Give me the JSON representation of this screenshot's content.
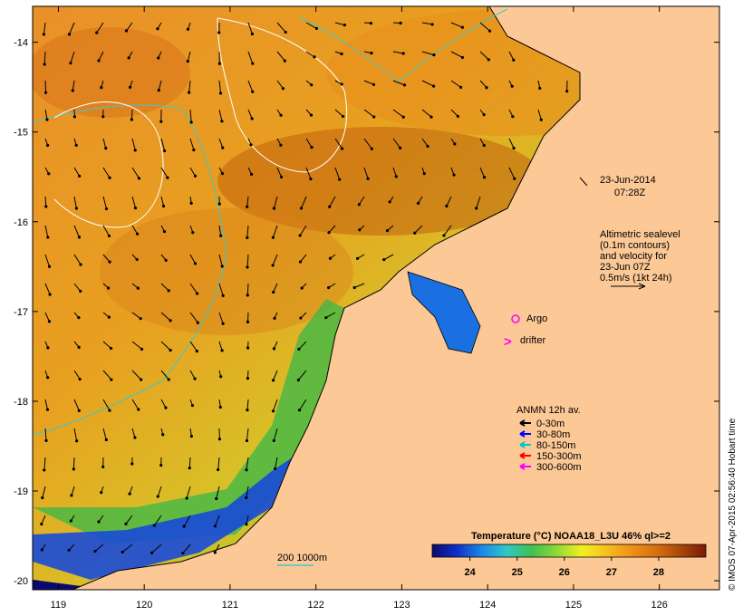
{
  "map": {
    "lon_ticks": [
      119,
      120,
      121,
      122,
      123,
      124,
      125,
      126
    ],
    "lat_ticks": [
      -14,
      -15,
      -16,
      -17,
      -18,
      -19,
      -20
    ],
    "lon_range": [
      118.7,
      126.7
    ],
    "lat_range": [
      -20.1,
      -13.6
    ]
  },
  "annotations": {
    "date": "23-Jun-2014",
    "time": "07:28Z",
    "altimetry_lines": [
      "Altimetric sealevel",
      "(0.1m contours)",
      "and velocity for",
      "23-Jun 07Z",
      "0.5m/s (1kt 24h)"
    ],
    "argo_label": "Argo",
    "drifter_label": "drifter",
    "depth_scale_label": "200  1000m",
    "credit": "© IMOS 07-Apr-2015 02:56:40 Hobart time"
  },
  "anmn_legend": {
    "title": "ANMN 12h av.",
    "items": [
      {
        "label": "0-30m",
        "color": "#000000"
      },
      {
        "label": "30-80m",
        "color": "#0000ff"
      },
      {
        "label": "80-150m",
        "color": "#00c8c8"
      },
      {
        "label": "150-300m",
        "color": "#ff0000"
      },
      {
        "label": "300-600m",
        "color": "#ff00ff"
      }
    ]
  },
  "colorbar": {
    "title": "Temperature (°C) NOAA18_L3U 46% ql>=2",
    "ticks": [
      24,
      25,
      26,
      27,
      28
    ],
    "range": [
      23.2,
      29.0
    ],
    "colors": [
      "#0a0a6e",
      "#1030c8",
      "#1a8ae8",
      "#30c8c8",
      "#40c050",
      "#8ed838",
      "#f0f020",
      "#f8c020",
      "#f09018",
      "#d8700c",
      "#a84808",
      "#7a1a06"
    ]
  },
  "colors": {
    "land": "#fcc896",
    "coastline": "#000000",
    "bathymetry": "#40c8c8",
    "sealevel_contour": "#ffffff",
    "argo": "#ff00ff",
    "drifter": "#ff00ff"
  }
}
